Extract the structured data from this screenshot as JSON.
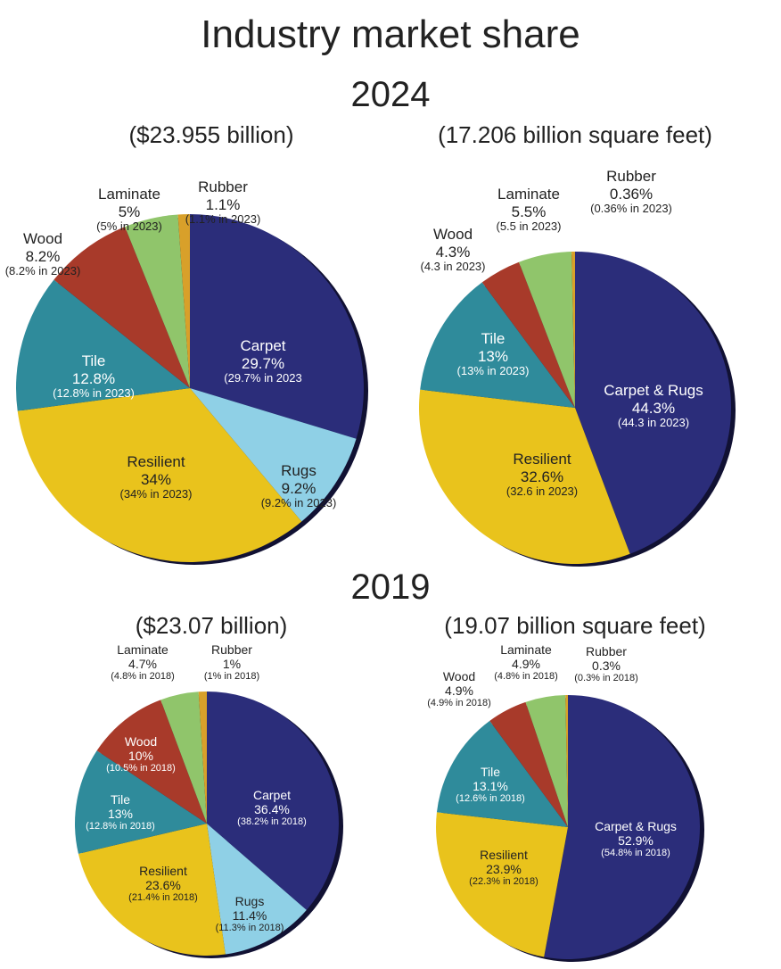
{
  "title": "Industry market share",
  "sections": [
    {
      "year": "2024"
    },
    {
      "year": "2019"
    }
  ],
  "colors": {
    "Carpet": "#2b2d7a",
    "Carpet & Rugs": "#2b2d7a",
    "Rugs": "#8fd0e6",
    "Resilient": "#e9c31c",
    "Tile": "#2f8b9b",
    "Wood": "#a83a2a",
    "Laminate": "#90c56b",
    "Rubber": "#d8a02a"
  },
  "chart_data": [
    {
      "type": "pie",
      "subtitle": "($23.955 billion)",
      "slices": [
        {
          "name": "Carpet",
          "value": 29.7,
          "pct": "29.7%",
          "note": "(29.7% in 2023"
        },
        {
          "name": "Rugs",
          "value": 9.2,
          "pct": "9.2%",
          "note": "(9.2% in 2023)"
        },
        {
          "name": "Resilient",
          "value": 34,
          "pct": "34%",
          "note": "(34% in 2023)"
        },
        {
          "name": "Tile",
          "value": 12.8,
          "pct": "12.8%",
          "note": "(12.8% in 2023)"
        },
        {
          "name": "Wood",
          "value": 8.2,
          "pct": "8.2%",
          "note": "(8.2% in 2023)"
        },
        {
          "name": "Laminate",
          "value": 5,
          "pct": "5%",
          "note": "(5% in 2023)"
        },
        {
          "name": "Rubber",
          "value": 1.1,
          "pct": "1.1%",
          "note": "(1.1% in 2023)"
        }
      ]
    },
    {
      "type": "pie",
      "subtitle": "(17.206 billion square feet)",
      "slices": [
        {
          "name": "Carpet & Rugs",
          "value": 44.3,
          "pct": "44.3%",
          "note": "(44.3 in 2023)"
        },
        {
          "name": "Resilient",
          "value": 32.6,
          "pct": "32.6%",
          "note": "(32.6 in 2023)"
        },
        {
          "name": "Tile",
          "value": 13,
          "pct": "13%",
          "note": "(13% in 2023)"
        },
        {
          "name": "Wood",
          "value": 4.3,
          "pct": "4.3%",
          "note": "(4.3 in 2023)"
        },
        {
          "name": "Laminate",
          "value": 5.5,
          "pct": "5.5%",
          "note": "(5.5 in 2023)"
        },
        {
          "name": "Rubber",
          "value": 0.36,
          "pct": "0.36%",
          "note": "(0.36% in 2023)"
        }
      ]
    },
    {
      "type": "pie",
      "subtitle": "($23.07 billion)",
      "slices": [
        {
          "name": "Carpet",
          "value": 36.4,
          "pct": "36.4%",
          "note": "(38.2% in 2018)"
        },
        {
          "name": "Rugs",
          "value": 11.4,
          "pct": "11.4%",
          "note": "(11.3% in 2018)"
        },
        {
          "name": "Resilient",
          "value": 23.6,
          "pct": "23.6%",
          "note": "(21.4% in 2018)"
        },
        {
          "name": "Tile",
          "value": 13,
          "pct": "13%",
          "note": "(12.8% in 2018)"
        },
        {
          "name": "Wood",
          "value": 10,
          "pct": "10%",
          "note": "(10.5% in 2018)"
        },
        {
          "name": "Laminate",
          "value": 4.7,
          "pct": "4.7%",
          "note": "(4.8% in 2018)"
        },
        {
          "name": "Rubber",
          "value": 1,
          "pct": "1%",
          "note": "(1% in 2018)"
        }
      ]
    },
    {
      "type": "pie",
      "subtitle": "(19.07 billion square feet)",
      "slices": [
        {
          "name": "Carpet & Rugs",
          "value": 52.9,
          "pct": "52.9%",
          "note": "(54.8% in 2018)"
        },
        {
          "name": "Resilient",
          "value": 23.9,
          "pct": "23.9%",
          "note": "(22.3% in 2018)"
        },
        {
          "name": "Tile",
          "value": 13.1,
          "pct": "13.1%",
          "note": "(12.6% in 2018)"
        },
        {
          "name": "Wood",
          "value": 4.9,
          "pct": "4.9%",
          "note": "(4.9% in 2018)"
        },
        {
          "name": "Laminate",
          "value": 4.9,
          "pct": "4.9%",
          "note": "(4.8% in 2018)"
        },
        {
          "name": "Rubber",
          "value": 0.3,
          "pct": "0.3%",
          "note": "(0.3% in 2018)"
        }
      ]
    }
  ]
}
